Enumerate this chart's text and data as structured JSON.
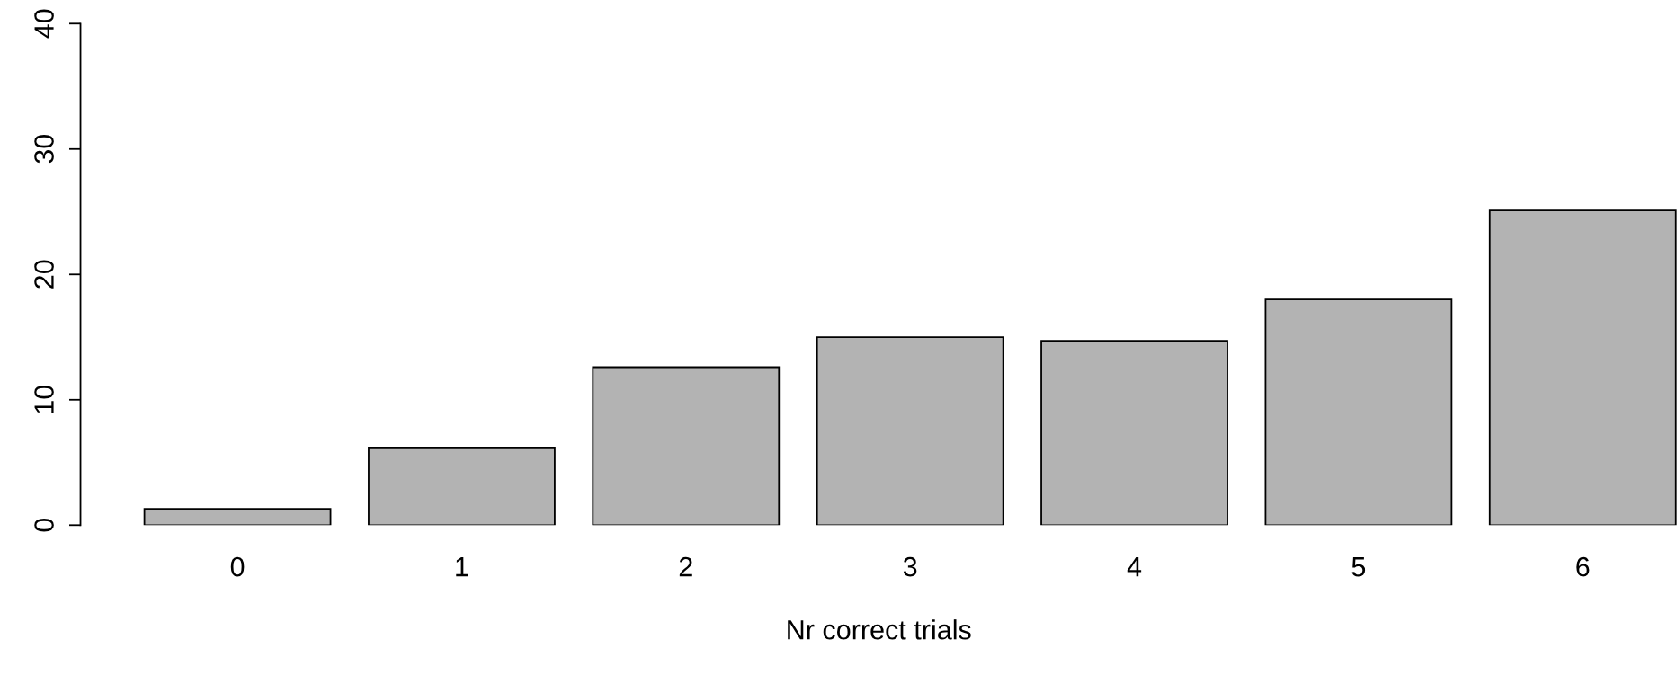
{
  "chart_data": {
    "type": "bar",
    "xlabel": "Nr correct trials",
    "categories": [
      "0",
      "1",
      "2",
      "3",
      "4",
      "5",
      "6"
    ],
    "values": [
      1.3,
      6.2,
      12.6,
      15.0,
      14.7,
      18.0,
      25.1
    ],
    "color": "#b3b3b3",
    "ylim": [
      0,
      40
    ],
    "yticks": [
      0,
      10,
      20,
      30,
      40
    ],
    "grid": false,
    "legend": false
  }
}
